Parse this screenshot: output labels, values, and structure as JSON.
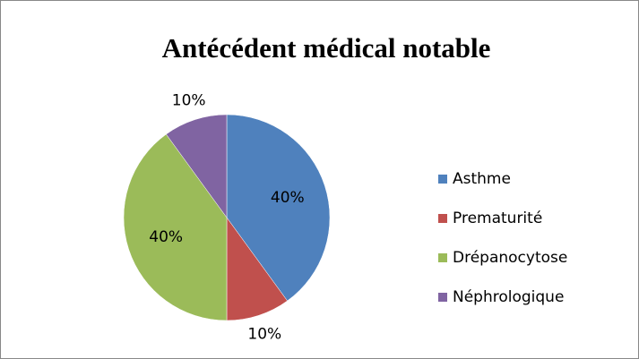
{
  "chart_data": {
    "type": "pie",
    "title": "Antécédent médical notable",
    "categories": [
      "Asthme",
      "Prematurité",
      "Drépanocytose",
      "Néphrologique"
    ],
    "values": [
      40,
      10,
      40,
      10
    ],
    "value_labels": [
      "40%",
      "10%",
      "40%",
      "10%"
    ],
    "colors": [
      "#4f81bd",
      "#c0504d",
      "#9bbb59",
      "#8064a2"
    ],
    "legend": "right"
  }
}
